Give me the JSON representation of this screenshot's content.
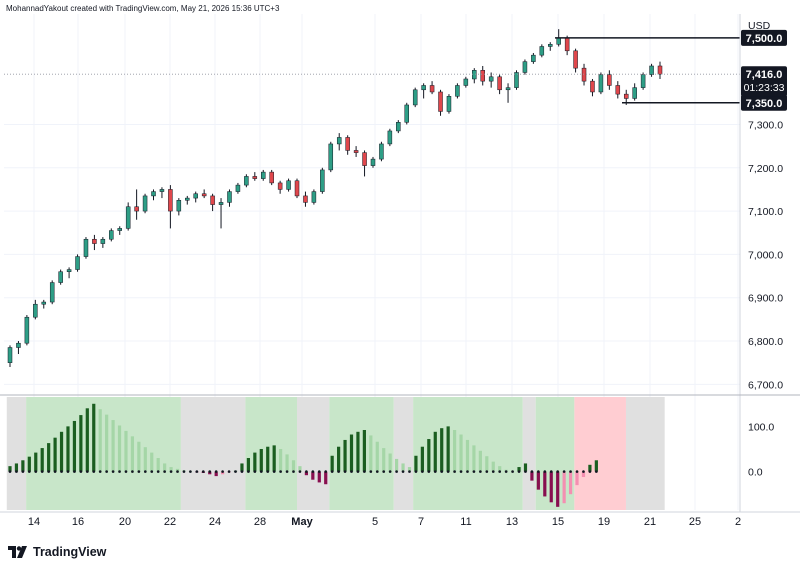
{
  "header": {
    "attribution": "MohannadYakout created with TradingView.com, May 21, 2026 15:36 UTC+3"
  },
  "brand": {
    "name": "TradingView"
  },
  "colors": {
    "up": "#2e9e86",
    "down": "#e0474c",
    "hist_dark_green": "#1b5e20",
    "hist_light_green": "#a5d6a7",
    "hist_dark_red": "#880e4f",
    "hist_light_red": "#f48fb1",
    "bg_green": "#c8e6c9",
    "bg_gray": "#e0e0e0",
    "bg_red": "#ffcdd2"
  },
  "chart_data": {
    "type": "candlestick",
    "currency": "USD",
    "price_axis": {
      "ticks": [
        6700,
        6800,
        6900,
        7000,
        7100,
        7200,
        7300
      ],
      "tick_labels": [
        "6,700.0",
        "6,800.0",
        "6,900.0",
        "7,000.0",
        "7,100.0",
        "7,200.0",
        "7,300.0"
      ],
      "range": [
        6680,
        7555
      ]
    },
    "time_axis": {
      "labels": [
        "14",
        "16",
        "20",
        "22",
        "24",
        "28",
        "May",
        "5",
        "7",
        "11",
        "13",
        "15",
        "19",
        "21",
        "25",
        "2"
      ]
    },
    "last_price": {
      "value": "7,416.0",
      "countdown": "01:23:33"
    },
    "levels": [
      {
        "value": 7500,
        "label": "7,500.0"
      },
      {
        "value": 7350,
        "label": "7,350.0"
      }
    ],
    "candles": [
      [
        6750,
        6790,
        6740,
        6785
      ],
      [
        6785,
        6800,
        6770,
        6795
      ],
      [
        6795,
        6860,
        6790,
        6855
      ],
      [
        6855,
        6895,
        6850,
        6885
      ],
      [
        6885,
        6895,
        6875,
        6890
      ],
      [
        6890,
        6940,
        6885,
        6935
      ],
      [
        6935,
        6965,
        6930,
        6960
      ],
      [
        6960,
        6970,
        6945,
        6965
      ],
      [
        6965,
        7000,
        6960,
        6995
      ],
      [
        6995,
        7040,
        6990,
        7035
      ],
      [
        7035,
        7045,
        7010,
        7025
      ],
      [
        7025,
        7040,
        7015,
        7035
      ],
      [
        7035,
        7060,
        7030,
        7055
      ],
      [
        7055,
        7065,
        7045,
        7060
      ],
      [
        7060,
        7120,
        7055,
        7110
      ],
      [
        7110,
        7150,
        7080,
        7100
      ],
      [
        7100,
        7140,
        7095,
        7135
      ],
      [
        7135,
        7150,
        7125,
        7145
      ],
      [
        7145,
        7155,
        7130,
        7150
      ],
      [
        7150,
        7160,
        7060,
        7100
      ],
      [
        7100,
        7130,
        7090,
        7125
      ],
      [
        7125,
        7135,
        7115,
        7130
      ],
      [
        7130,
        7145,
        7120,
        7140
      ],
      [
        7140,
        7150,
        7130,
        7135
      ],
      [
        7135,
        7140,
        7100,
        7115
      ],
      [
        7115,
        7130,
        7060,
        7120
      ],
      [
        7120,
        7150,
        7110,
        7145
      ],
      [
        7145,
        7165,
        7140,
        7160
      ],
      [
        7160,
        7185,
        7155,
        7180
      ],
      [
        7180,
        7190,
        7170,
        7175
      ],
      [
        7175,
        7195,
        7170,
        7190
      ],
      [
        7190,
        7195,
        7160,
        7165
      ],
      [
        7165,
        7170,
        7140,
        7150
      ],
      [
        7150,
        7175,
        7145,
        7170
      ],
      [
        7170,
        7175,
        7130,
        7135
      ],
      [
        7135,
        7145,
        7110,
        7120
      ],
      [
        7120,
        7150,
        7115,
        7145
      ],
      [
        7145,
        7200,
        7140,
        7195
      ],
      [
        7195,
        7260,
        7190,
        7255
      ],
      [
        7255,
        7280,
        7240,
        7270
      ],
      [
        7270,
        7275,
        7230,
        7240
      ],
      [
        7240,
        7250,
        7225,
        7235
      ],
      [
        7235,
        7240,
        7180,
        7205
      ],
      [
        7205,
        7225,
        7200,
        7220
      ],
      [
        7220,
        7260,
        7215,
        7255
      ],
      [
        7255,
        7290,
        7250,
        7285
      ],
      [
        7285,
        7310,
        7280,
        7305
      ],
      [
        7305,
        7350,
        7300,
        7345
      ],
      [
        7345,
        7385,
        7340,
        7380
      ],
      [
        7380,
        7395,
        7360,
        7390
      ],
      [
        7390,
        7400,
        7370,
        7375
      ],
      [
        7375,
        7380,
        7320,
        7330
      ],
      [
        7330,
        7370,
        7325,
        7365
      ],
      [
        7365,
        7395,
        7360,
        7390
      ],
      [
        7390,
        7410,
        7385,
        7405
      ],
      [
        7405,
        7430,
        7395,
        7425
      ],
      [
        7425,
        7435,
        7390,
        7400
      ],
      [
        7400,
        7420,
        7385,
        7410
      ],
      [
        7410,
        7415,
        7370,
        7380
      ],
      [
        7380,
        7395,
        7350,
        7385
      ],
      [
        7385,
        7425,
        7380,
        7420
      ],
      [
        7420,
        7450,
        7415,
        7445
      ],
      [
        7445,
        7465,
        7440,
        7460
      ],
      [
        7460,
        7485,
        7455,
        7480
      ],
      [
        7480,
        7490,
        7470,
        7485
      ],
      [
        7485,
        7520,
        7480,
        7500
      ],
      [
        7500,
        7505,
        7460,
        7470
      ],
      [
        7470,
        7475,
        7420,
        7430
      ],
      [
        7430,
        7440,
        7390,
        7400
      ],
      [
        7400,
        7405,
        7365,
        7375
      ],
      [
        7375,
        7420,
        7370,
        7415
      ],
      [
        7415,
        7425,
        7380,
        7390
      ],
      [
        7390,
        7400,
        7360,
        7370
      ],
      [
        7370,
        7380,
        7345,
        7360
      ],
      [
        7360,
        7395,
        7355,
        7385
      ],
      [
        7385,
        7420,
        7380,
        7415
      ],
      [
        7415,
        7440,
        7410,
        7435
      ],
      [
        7435,
        7445,
        7405,
        7416
      ]
    ],
    "oscillator": {
      "ticks": [
        0,
        100
      ],
      "tick_labels": [
        "0.0",
        "100.0"
      ],
      "range": [
        -85,
        165
      ],
      "values": [
        12,
        18,
        25,
        33,
        42,
        52,
        63,
        75,
        88,
        100,
        112,
        125,
        140,
        150,
        138,
        126,
        114,
        102,
        90,
        78,
        66,
        54,
        42,
        30,
        18,
        10,
        6,
        3,
        1,
        -1,
        -3,
        -6,
        -10,
        -6,
        -2,
        2,
        18,
        30,
        42,
        50,
        55,
        58,
        50,
        38,
        25,
        12,
        -8,
        -18,
        -24,
        -28,
        35,
        55,
        70,
        82,
        88,
        92,
        80,
        66,
        52,
        40,
        28,
        18,
        10,
        35,
        55,
        72,
        88,
        96,
        100,
        92,
        82,
        70,
        58,
        46,
        34,
        22,
        12,
        4,
        2,
        10,
        18,
        -20,
        -40,
        -55,
        -68,
        -78,
        -70,
        -50,
        -30,
        -12,
        15,
        25
      ],
      "background": [
        {
          "from": 0,
          "to": 3,
          "color": "gray"
        },
        {
          "from": 3,
          "to": 27,
          "color": "green"
        },
        {
          "from": 27,
          "to": 37,
          "color": "gray"
        },
        {
          "from": 37,
          "to": 45,
          "color": "green"
        },
        {
          "from": 45,
          "to": 50,
          "color": "gray"
        },
        {
          "from": 50,
          "to": 60,
          "color": "green"
        },
        {
          "from": 60,
          "to": 63,
          "color": "gray"
        },
        {
          "from": 63,
          "to": 80,
          "color": "green"
        },
        {
          "from": 80,
          "to": 82,
          "color": "gray"
        },
        {
          "from": 82,
          "to": 88,
          "color": "green"
        },
        {
          "from": 88,
          "to": 96,
          "color": "red"
        },
        {
          "from": 96,
          "to": 102,
          "color": "gray"
        }
      ]
    }
  }
}
